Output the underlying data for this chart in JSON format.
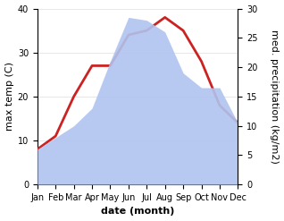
{
  "months": [
    "Jan",
    "Feb",
    "Mar",
    "Apr",
    "May",
    "Jun",
    "Jul",
    "Aug",
    "Sep",
    "Oct",
    "Nov",
    "Dec"
  ],
  "temperature": [
    8,
    11,
    20,
    27,
    27,
    34,
    35,
    38,
    35,
    28,
    18,
    14
  ],
  "precipitation": [
    6,
    8,
    10,
    13,
    21,
    28.5,
    28,
    26,
    19,
    16.5,
    16.5,
    10.5
  ],
  "temp_color": "#cc2222",
  "precip_color": "#b0c4f0",
  "temp_ylim": [
    0,
    40
  ],
  "precip_ylim": [
    0,
    30
  ],
  "temp_yticks": [
    0,
    10,
    20,
    30,
    40
  ],
  "precip_yticks": [
    0,
    5,
    10,
    15,
    20,
    25,
    30
  ],
  "xlabel": "date (month)",
  "ylabel_left": "max temp (C)",
  "ylabel_right": "med. precipitation (kg/m2)",
  "ylabel_left_fontsize": 8,
  "ylabel_right_fontsize": 8,
  "xlabel_fontsize": 8,
  "tick_fontsize": 7,
  "line_width": 2.0,
  "background_color": "#ffffff"
}
